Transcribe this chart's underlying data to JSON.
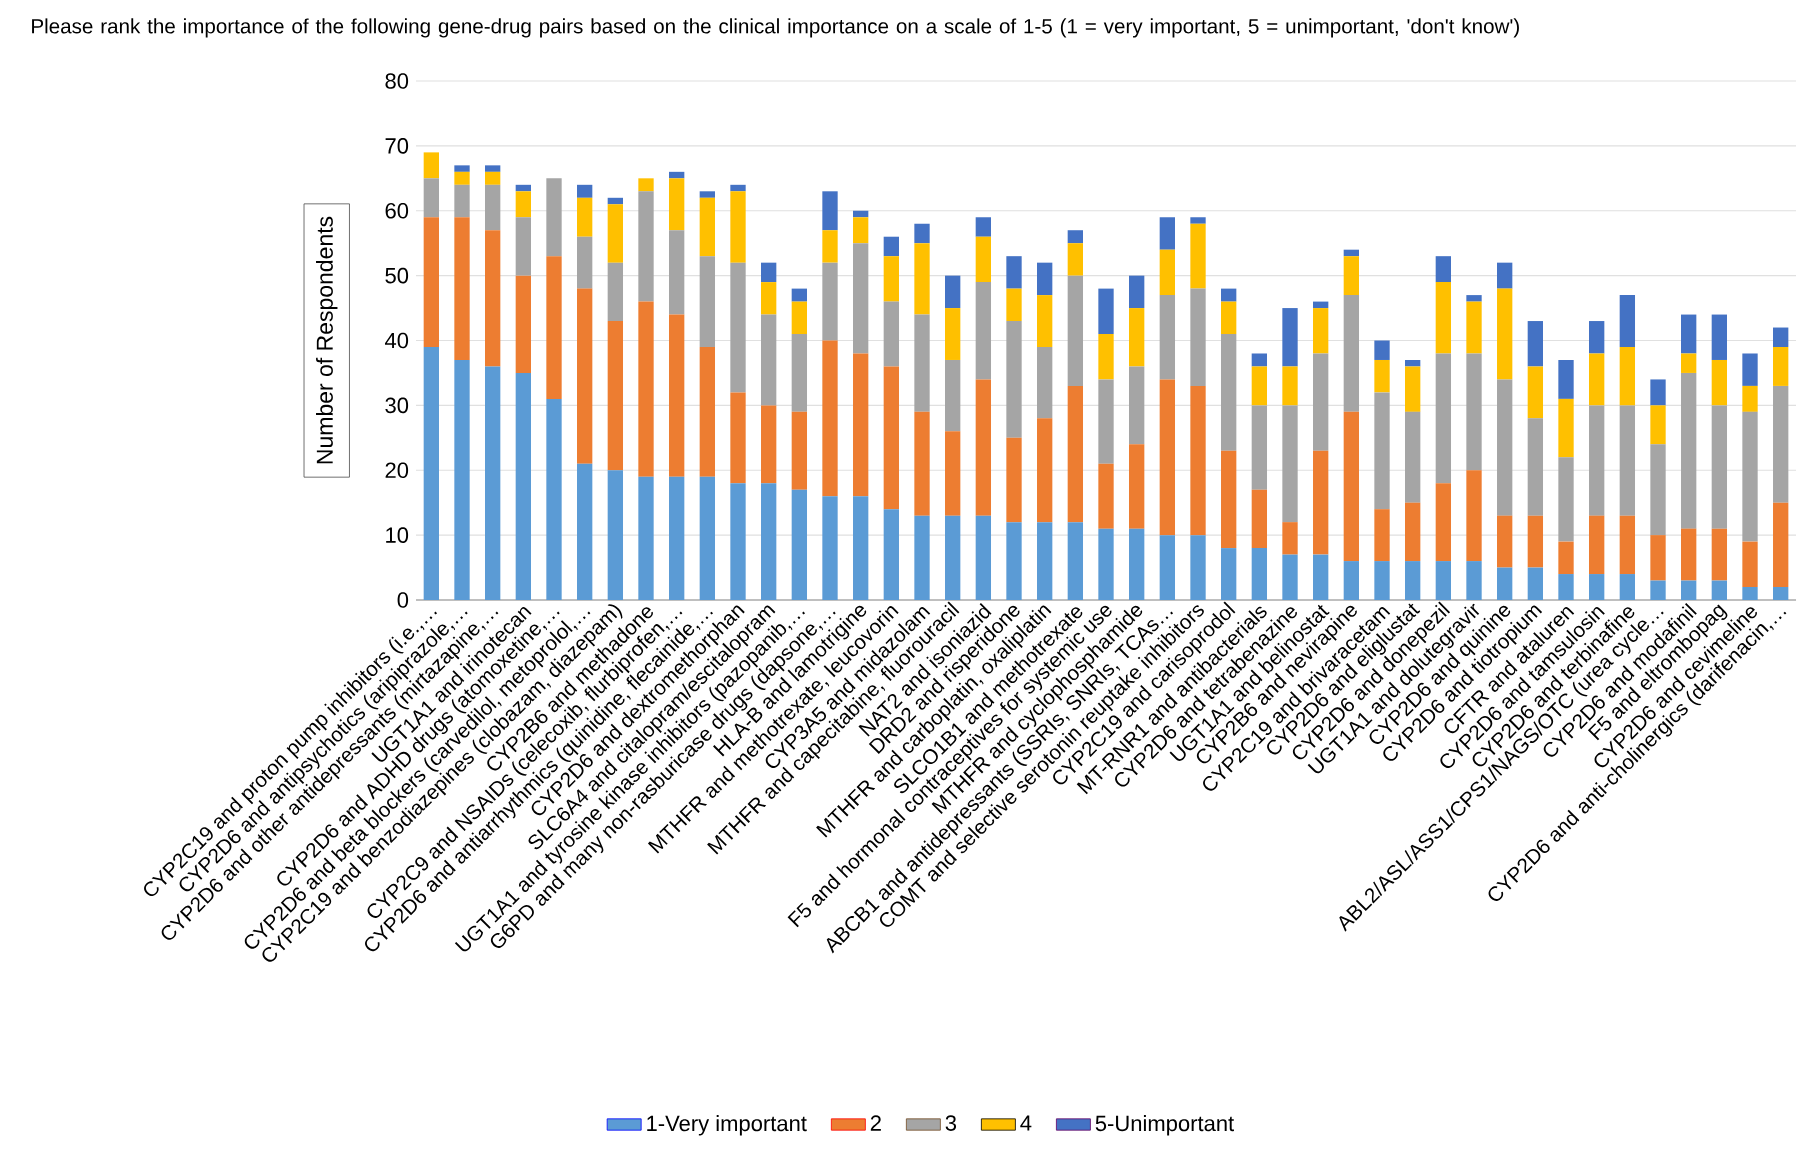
{
  "chart_data": {
    "type": "bar",
    "stacked": true,
    "title": "Please rank the importance of the following gene-drug pairs based on the clinical importance on a scale of 1-5 (1 = very important, 5 = unimportant, 'don't know')",
    "ylabel": "Number of Respondents",
    "categories": [
      "CYP2C19 and proton pump inhibitors (i.e.,…",
      "CYP2D6 and antipsychotics (aripiprazole,…",
      "CYP2D6 and other antidepressants (mirtazapine,…",
      "UGT1A1 and irinotecan",
      "CYP2D6 and ADHD drugs (atomoxetine,…",
      "CYP2D6 and beta blockers (carvedilol, metoprolol,…",
      "CYP2C19 and benzodiazepines (clobazam, diazepam)",
      "CYP2B6 and methadone",
      "CYP2C9 and NSAIDs (celecoxib, flurbiprofen,…",
      "CYP2D6 and antiarrhythmics (quinidine, flecainide,…",
      "CYP2D6 and dextromethorphan",
      "SLC6A4 and citalopram/escitalopram",
      "UGT1A1 and tyrosine kinase inhibitors (pazopanib,…",
      "G6PD and many non-rasburicase drugs (dapsone,…",
      "HLA-B and lamotrigine",
      "MTHFR and methotrexate, leucovorin",
      "CYP3A5 and midazolam",
      "MTHFR and capecitabine, fluorouracil",
      "NAT2 and isoniazid",
      "DRD2 and risperidone",
      "MTHFR and carboplatin, oxaliplatin",
      "SLCO1B1 and methotrexate",
      "F5 and hormonal contraceptives for systemic use",
      "MTHFR and cyclophosphamide",
      "ABCB1 and antidepressants (SSRIs, SNRIs, TCAs…",
      "COMT and selective serotonin reuptake inhibitors",
      "CYP2C19 and carisoprodol",
      "MT-RNR1 and antibacterials",
      "CYP2D6 and tetrabenazine",
      "UGT1A1 and belinostat",
      "CYP2B6 and nevirapine",
      "CYP2C19 and brivaracetam",
      "CYP2D6 and eliglustat",
      "CYP2D6 and donepezil",
      "UGT1A1 and dolutegravir",
      "CYP2D6 and quinine",
      "CYP2D6 and tiotropium",
      "CFTR and ataluren",
      "CYP2D6 and tamsulosin",
      "CYP2D6 and terbinafine",
      "ABL2/ASL/ASS1/CPS1/NAGS/OTC (urea cycle…",
      "CYP2D6 and modafinil",
      "F5 and eltrombopag",
      "CYP2D6 and cevimeline",
      "CYP2D6 and anti-cholinergics (darifenacin,…"
    ],
    "series": [
      {
        "name": "1-Very important",
        "color": "#5b9bd5",
        "values": [
          39,
          37,
          36,
          35,
          31,
          21,
          20,
          19,
          19,
          19,
          18,
          18,
          17,
          16,
          16,
          14,
          13,
          13,
          13,
          12,
          12,
          12,
          11,
          11,
          10,
          10,
          8,
          8,
          7,
          7,
          6,
          6,
          6,
          6,
          6,
          5,
          5,
          4,
          4,
          4,
          3,
          3,
          3,
          2,
          2
        ]
      },
      {
        "name": "2",
        "color": "#ed7d31",
        "values": [
          20,
          22,
          21,
          15,
          22,
          27,
          23,
          27,
          25,
          20,
          14,
          12,
          12,
          24,
          22,
          22,
          16,
          13,
          21,
          13,
          16,
          21,
          10,
          13,
          24,
          23,
          15,
          9,
          5,
          16,
          23,
          8,
          9,
          12,
          14,
          8,
          8,
          5,
          9,
          9,
          7,
          8,
          8,
          7,
          13
        ]
      },
      {
        "name": "3",
        "color": "#a5a5a5",
        "values": [
          6,
          5,
          7,
          9,
          12,
          8,
          9,
          17,
          13,
          14,
          20,
          14,
          12,
          12,
          17,
          10,
          15,
          11,
          15,
          18,
          11,
          17,
          13,
          12,
          13,
          15,
          18,
          13,
          18,
          15,
          18,
          18,
          14,
          20,
          18,
          21,
          15,
          13,
          17,
          17,
          14,
          24,
          19,
          20,
          18
        ]
      },
      {
        "name": "4",
        "color": "#ffc000",
        "values": [
          4,
          2,
          2,
          4,
          0,
          6,
          9,
          2,
          8,
          9,
          11,
          5,
          5,
          5,
          4,
          7,
          11,
          8,
          7,
          5,
          8,
          5,
          7,
          9,
          7,
          10,
          5,
          6,
          6,
          7,
          6,
          5,
          7,
          11,
          8,
          14,
          8,
          9,
          8,
          9,
          6,
          3,
          7,
          4,
          6
        ]
      },
      {
        "name": "5-Unimportant",
        "color": "#4472c4",
        "values": [
          0,
          1,
          1,
          1,
          0,
          2,
          1,
          0,
          1,
          1,
          1,
          3,
          2,
          6,
          1,
          3,
          3,
          5,
          3,
          5,
          5,
          2,
          7,
          5,
          5,
          1,
          2,
          2,
          9,
          1,
          1,
          3,
          1,
          4,
          1,
          4,
          7,
          6,
          5,
          8,
          4,
          6,
          7,
          5,
          3
        ]
      }
    ],
    "ylim": [
      0,
      80
    ],
    "yticks": [
      0,
      10,
      20,
      30,
      40,
      50,
      60,
      70,
      80
    ],
    "grid": "y",
    "legend": "bottom"
  }
}
